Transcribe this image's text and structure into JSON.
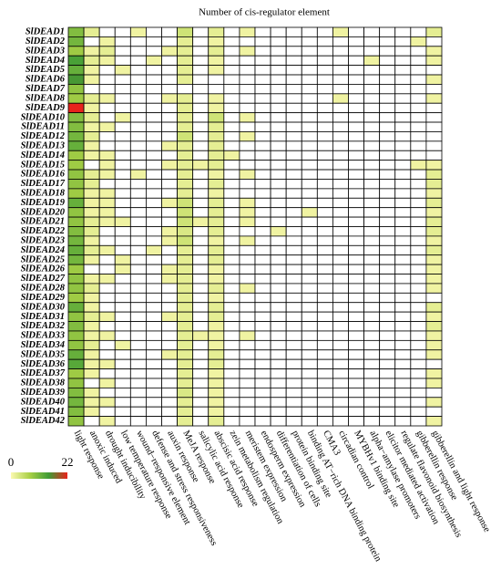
{
  "chart_data": {
    "type": "heatmap",
    "title": "Number of cis-regulator element",
    "rows": [
      "SlDEAD1",
      "SlDEAD2",
      "SlDEAD3",
      "SlDEAD4",
      "SlDEAD5",
      "SlDEAD6",
      "SlDEAD7",
      "SlDEAD8",
      "SlDEAD9",
      "SlDEAD10",
      "SlDEAD11",
      "SlDEAD12",
      "SlDEAD13",
      "SlDEAD14",
      "SlDEAD15",
      "SlDEAD16",
      "SlDEAD17",
      "SlDEAD18",
      "SlDEAD19",
      "SlDEAD20",
      "SlDEAD21",
      "SlDEAD22",
      "SlDEAD23",
      "SlDEAD24",
      "SlDEAD25",
      "SlDEAD26",
      "SlDEAD27",
      "SlDEAD28",
      "SlDEAD29",
      "SlDEAD30",
      "SlDEAD31",
      "SlDEAD32",
      "SlDEAD33",
      "SlDEAD34",
      "SlDEAD35",
      "SlDEAD36",
      "SlDEAD37",
      "SlDEAD38",
      "SlDEAD39",
      "SlDEAD40",
      "SlDEAD41",
      "SlDEAD42"
    ],
    "columns": [
      "light response",
      "anoxic induced",
      "drought inducibility",
      "low temperature response",
      "wound−responsive element",
      "defense and stress responsiveness",
      "auxin response",
      "MeJA response",
      "salicylic acid response",
      "abscisic acid response",
      "zein metabolism regulation",
      "meristem expression",
      "endosperm expression",
      "differentiation of cells",
      "protein binding site",
      "binding AT−rich DNA binding protein",
      "CMA3",
      "circadian control",
      "MYBHv1 binding site",
      "alpha−amylase promoters",
      "elicitor mediated activation",
      "regulate flavonoid biosynthesis",
      "gibberellin response",
      "gibberellin and light response"
    ],
    "values": [
      [
        10,
        2,
        0,
        0,
        1,
        0,
        0,
        4,
        0,
        2,
        0,
        1,
        0,
        0,
        0,
        0,
        0,
        1,
        0,
        0,
        0,
        0,
        0,
        2
      ],
      [
        11,
        0,
        1,
        0,
        0,
        0,
        0,
        2,
        0,
        1,
        0,
        0,
        0,
        0,
        0,
        0,
        0,
        0,
        0,
        0,
        0,
        0,
        1,
        0
      ],
      [
        8,
        1,
        2,
        0,
        0,
        0,
        1,
        2,
        0,
        2,
        0,
        1,
        0,
        0,
        0,
        0,
        0,
        0,
        0,
        0,
        0,
        0,
        0,
        1
      ],
      [
        14,
        2,
        1,
        0,
        0,
        1,
        0,
        2,
        0,
        1,
        0,
        0,
        0,
        0,
        0,
        0,
        0,
        0,
        0,
        1,
        0,
        0,
        0,
        1
      ],
      [
        12,
        1,
        0,
        1,
        0,
        0,
        0,
        2,
        0,
        1,
        0,
        0,
        0,
        0,
        0,
        0,
        0,
        0,
        0,
        0,
        0,
        0,
        0,
        0
      ],
      [
        15,
        1,
        0,
        0,
        0,
        0,
        0,
        2,
        0,
        0,
        0,
        0,
        0,
        0,
        0,
        0,
        0,
        0,
        0,
        0,
        0,
        0,
        0,
        1
      ],
      [
        9,
        0,
        0,
        0,
        0,
        0,
        0,
        0,
        0,
        0,
        0,
        0,
        0,
        0,
        0,
        0,
        0,
        0,
        0,
        0,
        0,
        0,
        0,
        0
      ],
      [
        8,
        2,
        1,
        0,
        0,
        0,
        1,
        2,
        0,
        1,
        0,
        0,
        0,
        0,
        0,
        0,
        0,
        1,
        0,
        0,
        0,
        0,
        0,
        1
      ],
      [
        22,
        1,
        0,
        0,
        0,
        0,
        0,
        2,
        0,
        1,
        0,
        0,
        0,
        0,
        0,
        0,
        0,
        0,
        0,
        0,
        0,
        0,
        0,
        0
      ],
      [
        10,
        2,
        0,
        1,
        0,
        0,
        0,
        2,
        0,
        4,
        0,
        1,
        0,
        0,
        0,
        0,
        0,
        0,
        0,
        0,
        0,
        0,
        0,
        0
      ],
      [
        10,
        1,
        1,
        0,
        0,
        0,
        0,
        2,
        0,
        2,
        0,
        0,
        0,
        0,
        0,
        0,
        0,
        0,
        0,
        0,
        0,
        0,
        0,
        0
      ],
      [
        11,
        2,
        0,
        0,
        0,
        0,
        0,
        4,
        0,
        2,
        0,
        1,
        0,
        0,
        0,
        0,
        0,
        0,
        0,
        0,
        0,
        0,
        0,
        0
      ],
      [
        12,
        1,
        0,
        0,
        0,
        0,
        1,
        2,
        0,
        2,
        0,
        0,
        0,
        0,
        0,
        0,
        0,
        0,
        0,
        0,
        0,
        0,
        0,
        0
      ],
      [
        8,
        1,
        1,
        0,
        0,
        0,
        0,
        2,
        0,
        2,
        1,
        0,
        0,
        0,
        0,
        0,
        0,
        0,
        0,
        0,
        0,
        0,
        0,
        0
      ],
      [
        8,
        0,
        1,
        0,
        0,
        0,
        1,
        2,
        1,
        2,
        0,
        0,
        0,
        0,
        0,
        0,
        0,
        0,
        0,
        0,
        0,
        0,
        1,
        1
      ],
      [
        9,
        2,
        1,
        0,
        1,
        0,
        0,
        2,
        0,
        1,
        0,
        1,
        0,
        0,
        0,
        0,
        0,
        0,
        0,
        0,
        0,
        0,
        0,
        2
      ],
      [
        9,
        2,
        0,
        0,
        0,
        0,
        0,
        2,
        0,
        2,
        0,
        0,
        0,
        0,
        0,
        0,
        0,
        0,
        0,
        0,
        0,
        0,
        0,
        2
      ],
      [
        8,
        1,
        1,
        0,
        0,
        0,
        0,
        2,
        0,
        1,
        0,
        0,
        0,
        0,
        0,
        0,
        0,
        0,
        0,
        0,
        0,
        0,
        0,
        1
      ],
      [
        12,
        1,
        1,
        0,
        0,
        0,
        1,
        4,
        0,
        2,
        0,
        1,
        0,
        0,
        0,
        0,
        0,
        0,
        0,
        0,
        0,
        0,
        0,
        2
      ],
      [
        9,
        1,
        1,
        0,
        0,
        0,
        0,
        4,
        0,
        2,
        0,
        1,
        0,
        0,
        0,
        1,
        0,
        0,
        0,
        0,
        0,
        0,
        0,
        1
      ],
      [
        9,
        2,
        1,
        1,
        0,
        0,
        0,
        4,
        1,
        2,
        0,
        1,
        0,
        0,
        0,
        0,
        0,
        0,
        0,
        0,
        0,
        0,
        0,
        2
      ],
      [
        10,
        2,
        0,
        0,
        0,
        0,
        1,
        3,
        0,
        2,
        0,
        0,
        0,
        1,
        0,
        0,
        0,
        0,
        0,
        0,
        0,
        0,
        0,
        2
      ],
      [
        11,
        1,
        0,
        0,
        0,
        0,
        1,
        4,
        0,
        1,
        0,
        1,
        0,
        0,
        0,
        0,
        0,
        0,
        0,
        0,
        0,
        0,
        0,
        1
      ],
      [
        12,
        2,
        1,
        0,
        0,
        1,
        0,
        2,
        0,
        2,
        0,
        0,
        0,
        0,
        0,
        0,
        0,
        0,
        0,
        0,
        0,
        0,
        0,
        2
      ],
      [
        11,
        1,
        0,
        1,
        0,
        0,
        0,
        2,
        0,
        2,
        0,
        0,
        0,
        0,
        0,
        0,
        0,
        0,
        0,
        0,
        0,
        0,
        0,
        1
      ],
      [
        8,
        0,
        0,
        1,
        0,
        0,
        1,
        2,
        0,
        1,
        0,
        0,
        0,
        0,
        0,
        0,
        0,
        0,
        0,
        0,
        0,
        0,
        0,
        1
      ],
      [
        9,
        1,
        1,
        0,
        0,
        0,
        1,
        2,
        0,
        1,
        0,
        0,
        0,
        0,
        0,
        0,
        0,
        0,
        0,
        0,
        0,
        0,
        0,
        1
      ],
      [
        9,
        2,
        0,
        0,
        0,
        0,
        0,
        2,
        0,
        2,
        0,
        1,
        0,
        0,
        0,
        0,
        0,
        0,
        0,
        0,
        0,
        0,
        0,
        1
      ],
      [
        8,
        1,
        0,
        0,
        0,
        0,
        0,
        2,
        0,
        1,
        0,
        0,
        0,
        0,
        0,
        0,
        0,
        0,
        0,
        0,
        0,
        0,
        0,
        0
      ],
      [
        12,
        1,
        0,
        0,
        0,
        0,
        0,
        2,
        0,
        2,
        0,
        0,
        0,
        0,
        0,
        0,
        0,
        0,
        0,
        0,
        0,
        0,
        0,
        2
      ],
      [
        9,
        2,
        1,
        0,
        0,
        0,
        1,
        2,
        0,
        2,
        0,
        0,
        0,
        0,
        0,
        0,
        0,
        0,
        0,
        0,
        0,
        0,
        0,
        1
      ],
      [
        10,
        1,
        0,
        0,
        0,
        0,
        0,
        2,
        0,
        1,
        0,
        0,
        0,
        0,
        0,
        0,
        0,
        0,
        0,
        0,
        0,
        0,
        0,
        2
      ],
      [
        9,
        1,
        1,
        0,
        0,
        0,
        0,
        2,
        1,
        1,
        0,
        1,
        0,
        0,
        0,
        0,
        0,
        0,
        0,
        0,
        0,
        0,
        0,
        1
      ],
      [
        9,
        2,
        0,
        1,
        0,
        0,
        0,
        2,
        0,
        1,
        0,
        0,
        0,
        0,
        0,
        0,
        0,
        0,
        0,
        0,
        0,
        0,
        0,
        1
      ],
      [
        12,
        1,
        0,
        0,
        0,
        0,
        1,
        2,
        0,
        2,
        0,
        0,
        0,
        0,
        0,
        0,
        0,
        0,
        0,
        0,
        0,
        0,
        0,
        1
      ],
      [
        13,
        1,
        1,
        0,
        0,
        0,
        0,
        2,
        0,
        2,
        0,
        0,
        0,
        0,
        0,
        0,
        0,
        0,
        0,
        0,
        0,
        0,
        0,
        0
      ],
      [
        8,
        1,
        0,
        0,
        0,
        0,
        0,
        2,
        0,
        1,
        0,
        0,
        0,
        0,
        0,
        0,
        0,
        0,
        0,
        0,
        0,
        0,
        0,
        1
      ],
      [
        9,
        0,
        1,
        0,
        0,
        0,
        0,
        2,
        0,
        1,
        0,
        0,
        0,
        0,
        0,
        0,
        0,
        0,
        0,
        0,
        0,
        0,
        0,
        1
      ],
      [
        10,
        1,
        0,
        0,
        0,
        0,
        0,
        3,
        0,
        1,
        0,
        0,
        0,
        0,
        0,
        0,
        0,
        0,
        0,
        0,
        0,
        0,
        0,
        0
      ],
      [
        11,
        1,
        1,
        0,
        0,
        0,
        0,
        2,
        0,
        1,
        0,
        0,
        0,
        0,
        0,
        0,
        0,
        0,
        0,
        0,
        0,
        0,
        0,
        1
      ],
      [
        10,
        1,
        0,
        0,
        0,
        0,
        0,
        2,
        0,
        1,
        0,
        0,
        0,
        0,
        0,
        0,
        0,
        0,
        0,
        0,
        0,
        0,
        0,
        0
      ],
      [
        9,
        0,
        1,
        0,
        0,
        0,
        0,
        2,
        0,
        2,
        0,
        0,
        0,
        0,
        0,
        0,
        0,
        0,
        0,
        0,
        0,
        0,
        0,
        1
      ]
    ],
    "zlim": [
      0,
      22
    ],
    "zticks": [
      0,
      22
    ],
    "colorscale": [
      "#fbf9b0",
      "#a9d046",
      "#3f9c35",
      "#e8231c"
    ]
  }
}
